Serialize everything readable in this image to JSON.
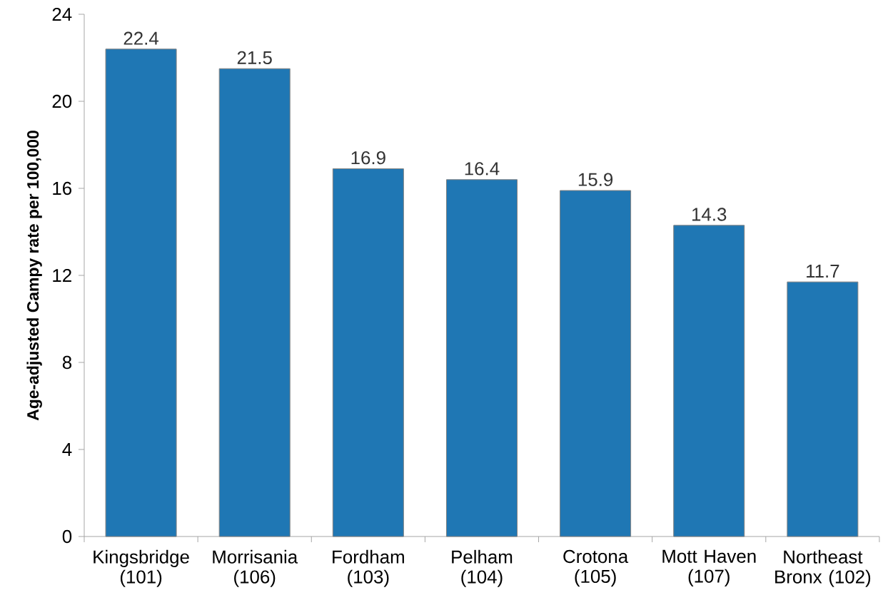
{
  "chart_data": {
    "type": "bar",
    "ylabel": "Age-adjusted Campy rate per 100,000",
    "categories": [
      "Kingsbridge (101)",
      "Morrisania (106)",
      "Fordham (103)",
      "Pelham (104)",
      "Crotona (105)",
      "Mott Haven (107)",
      "Northeast Bronx (102)"
    ],
    "values": [
      22.4,
      21.5,
      16.9,
      16.4,
      15.9,
      14.3,
      11.7
    ],
    "color": "#1f77b4",
    "ylim": [
      0,
      24
    ],
    "yticks": [
      0,
      4,
      8,
      12,
      16,
      20,
      24
    ],
    "data_labels": true
  }
}
